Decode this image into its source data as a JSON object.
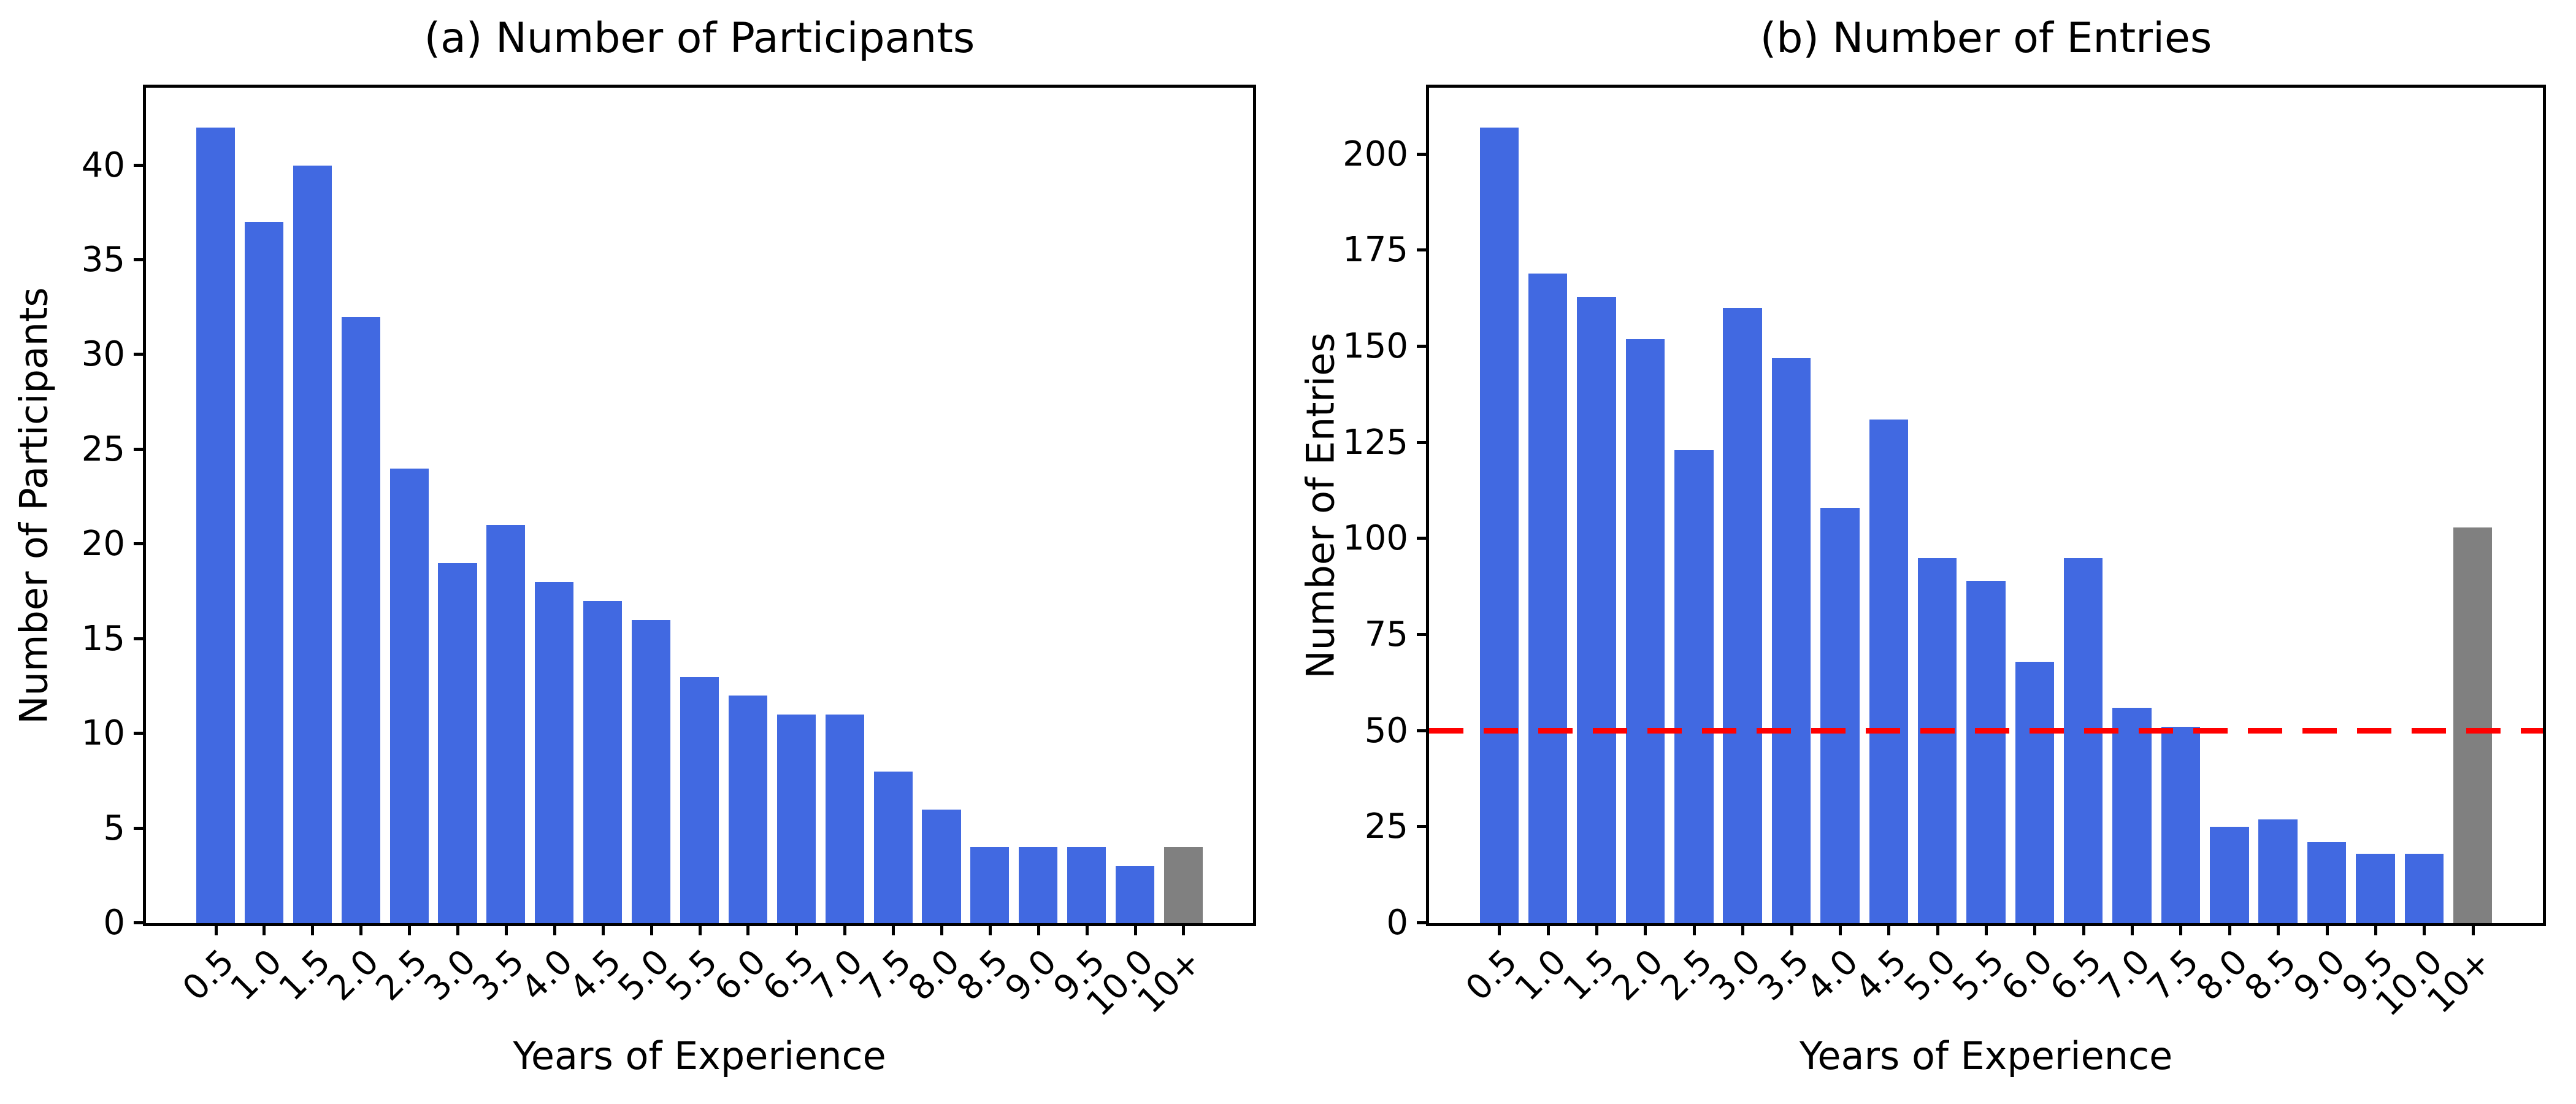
{
  "figure": {
    "background": "#ffffff",
    "axis_color": "#000000"
  },
  "chart_data": [
    {
      "type": "bar",
      "panel": "a",
      "title": "(a) Number of Participants",
      "xlabel": "Years of Experience",
      "ylabel": "Number of Participants",
      "categories": [
        "0.5",
        "1.0",
        "1.5",
        "2.0",
        "2.5",
        "3.0",
        "3.5",
        "4.0",
        "4.5",
        "5.0",
        "5.5",
        "6.0",
        "6.5",
        "7.0",
        "7.5",
        "8.0",
        "8.5",
        "9.0",
        "9.5",
        "10.0",
        "10+"
      ],
      "values": [
        42,
        37,
        40,
        32,
        24,
        19,
        21,
        18,
        17,
        16,
        13,
        12,
        11,
        11,
        8,
        6,
        4,
        4,
        4,
        3,
        4
      ],
      "bar_color": "#4169E1",
      "last_bar_color": "#808080",
      "yticks": [
        0,
        5,
        10,
        15,
        20,
        25,
        30,
        35,
        40
      ],
      "ylim": [
        0,
        44.1
      ],
      "x_pad": 1.44,
      "bar_width": 0.8,
      "grid": false,
      "legend": null,
      "hline": null
    },
    {
      "type": "bar",
      "panel": "b",
      "title": "(b) Number of Entries",
      "xlabel": "Years of Experience",
      "ylabel": "Number of Entries",
      "categories": [
        "0.5",
        "1.0",
        "1.5",
        "2.0",
        "2.5",
        "3.0",
        "3.5",
        "4.0",
        "4.5",
        "5.0",
        "5.5",
        "6.0",
        "6.5",
        "7.0",
        "7.5",
        "8.0",
        "8.5",
        "9.0",
        "9.5",
        "10.0",
        "10+"
      ],
      "values": [
        207,
        169,
        163,
        152,
        123,
        160,
        147,
        108,
        131,
        95,
        89,
        68,
        95,
        56,
        51,
        25,
        27,
        21,
        18,
        18,
        103
      ],
      "bar_color": "#4169E1",
      "last_bar_color": "#808080",
      "yticks": [
        0,
        25,
        50,
        75,
        100,
        125,
        150,
        175,
        200
      ],
      "ylim": [
        0,
        217.35
      ],
      "x_pad": 1.44,
      "bar_width": 0.8,
      "grid": false,
      "legend": null,
      "hline": {
        "y": 50,
        "style": "dashed",
        "color": "#FF0000"
      }
    }
  ]
}
